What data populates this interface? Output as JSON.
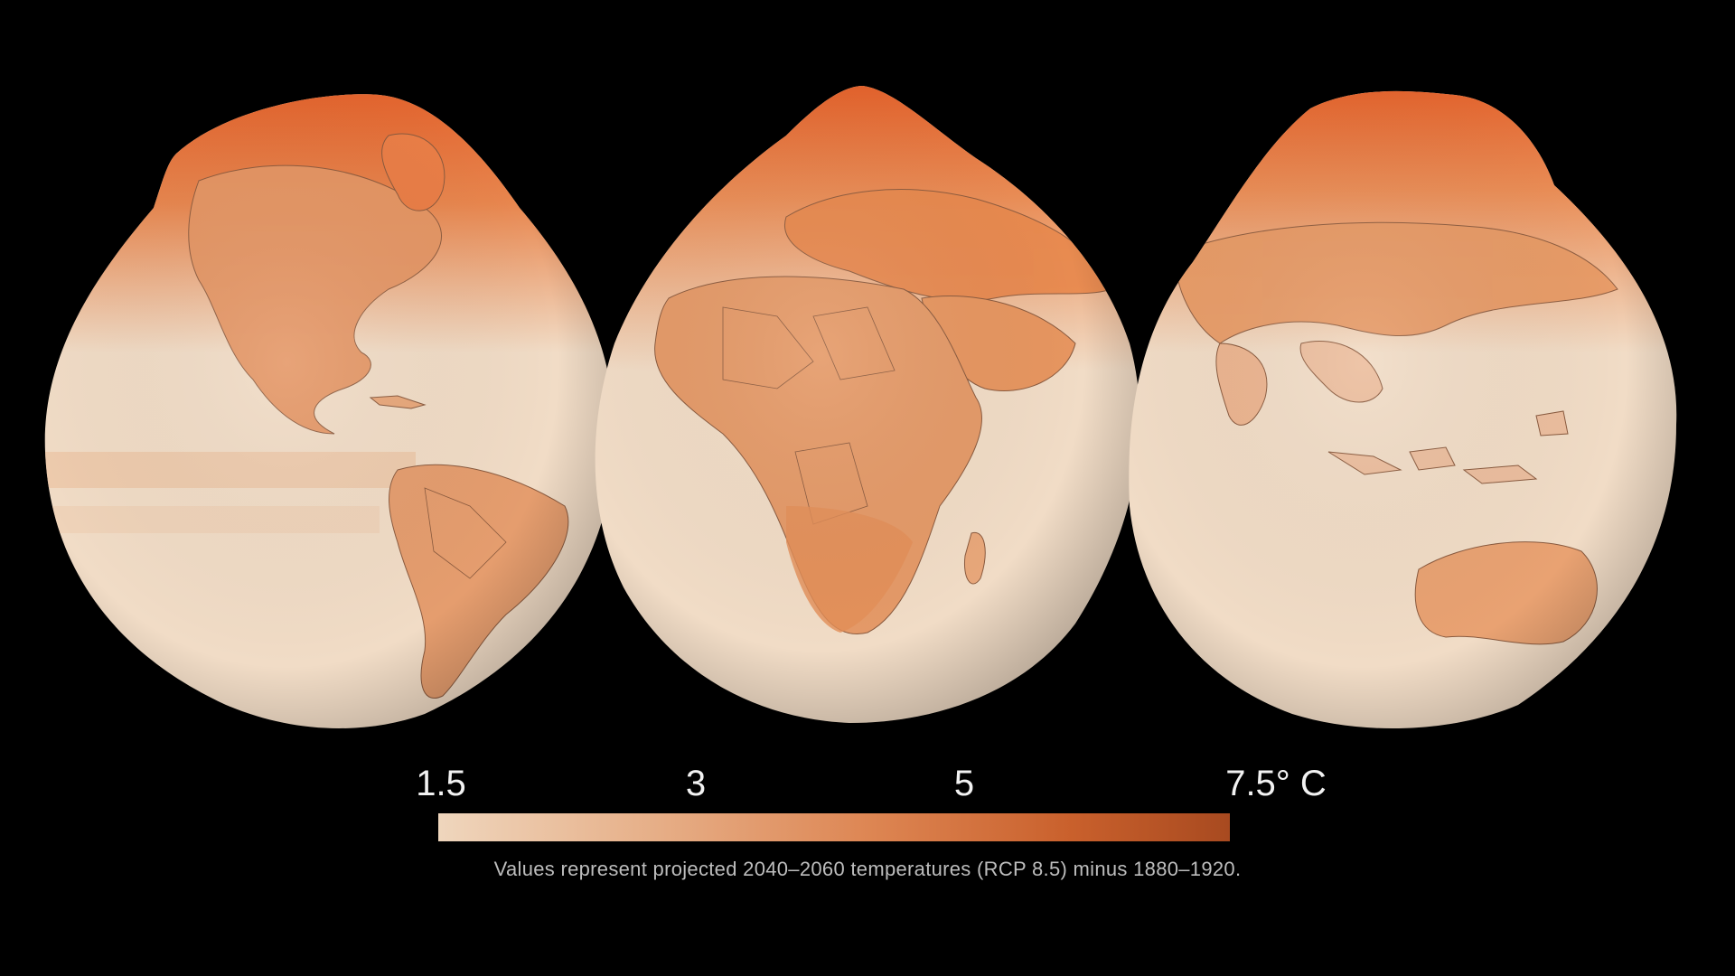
{
  "map": {
    "description_of_views": [
      "americas",
      "europe-africa",
      "asia-australia"
    ],
    "color_low": "#f3dfc9",
    "color_mid": "#e49a68",
    "color_high": "#e2602a",
    "background": "#000000"
  },
  "legend": {
    "ticks": [
      {
        "label": "1.5",
        "value": 1.5
      },
      {
        "label": "3",
        "value": 3
      },
      {
        "label": "5",
        "value": 5
      },
      {
        "label": "7.5° C",
        "value": 7.5
      }
    ],
    "range": [
      1.5,
      7.5
    ],
    "gradient": [
      "#efd6bd",
      "#e7b28c",
      "#dd8552",
      "#c9602c",
      "#a84a20"
    ],
    "caption": "Values represent projected 2040–2060 temperatures (RCP 8.5) minus 1880–1920."
  }
}
